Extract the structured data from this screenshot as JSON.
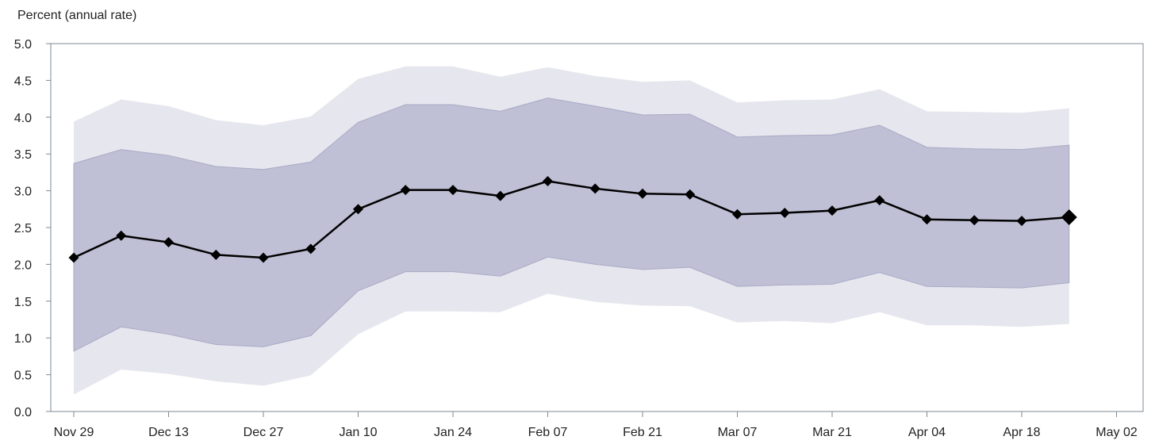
{
  "chart_data": {
    "type": "area",
    "ylabel": "Percent (annual rate)",
    "xlabel": "",
    "ylim": [
      0,
      5
    ],
    "yticks": [
      "0.0",
      "0.5",
      "1.0",
      "1.5",
      "2.0",
      "2.5",
      "3.0",
      "3.5",
      "4.0",
      "4.5",
      "5.0"
    ],
    "xticks": [
      "Nov 29",
      "Dec 13",
      "Dec 27",
      "Jan 10",
      "Jan 24",
      "Feb 07",
      "Feb 21",
      "Mar 07",
      "Mar 21",
      "Apr 04",
      "Apr 18",
      "May 02"
    ],
    "x": [
      "Nov 29",
      "Dec 06",
      "Dec 13",
      "Dec 20",
      "Dec 27",
      "Jan 03",
      "Jan 10",
      "Jan 17",
      "Jan 24",
      "Jan 31",
      "Feb 07",
      "Feb 14",
      "Feb 21",
      "Feb 28",
      "Mar 07",
      "Mar 14",
      "Mar 21",
      "Mar 28",
      "Apr 04",
      "Apr 11",
      "Apr 18",
      "Apr 25"
    ],
    "series": [
      {
        "values": [
          2.09,
          2.39,
          2.3,
          2.13,
          2.09,
          2.21,
          2.75,
          3.01,
          3.01,
          2.93,
          3.13,
          3.03,
          2.96,
          2.95,
          2.68,
          2.7,
          2.73,
          2.87,
          2.61,
          2.6,
          2.59,
          2.64
        ]
      }
    ],
    "bands": [
      {
        "lower": [
          0.23,
          0.57,
          0.51,
          0.41,
          0.35,
          0.49,
          1.05,
          1.36,
          1.36,
          1.35,
          1.6,
          1.49,
          1.44,
          1.43,
          1.21,
          1.23,
          1.2,
          1.35,
          1.17,
          1.17,
          1.15,
          1.19
        ],
        "upper": [
          3.94,
          4.24,
          4.15,
          3.96,
          3.89,
          4.01,
          4.52,
          4.69,
          4.69,
          4.55,
          4.68,
          4.56,
          4.48,
          4.5,
          4.2,
          4.23,
          4.24,
          4.38,
          4.08,
          4.07,
          4.06,
          4.12
        ]
      },
      {
        "lower": [
          0.82,
          1.15,
          1.05,
          0.91,
          0.88,
          1.03,
          1.64,
          1.9,
          1.9,
          1.84,
          2.1,
          2.0,
          1.93,
          1.96,
          1.7,
          1.72,
          1.73,
          1.89,
          1.7,
          1.69,
          1.68,
          1.75
        ],
        "upper": [
          3.37,
          3.56,
          3.48,
          3.33,
          3.29,
          3.39,
          3.93,
          4.17,
          4.17,
          4.08,
          4.26,
          4.15,
          4.03,
          4.04,
          3.73,
          3.75,
          3.76,
          3.89,
          3.59,
          3.57,
          3.56,
          3.62
        ]
      }
    ],
    "colors": {
      "outer_band": "#e6e6ee",
      "inner_band": "#bfc0d5",
      "inner_band_edge": "#a9aac6",
      "line": "#000000",
      "marker": "#000000",
      "axis": "#7f8a96"
    },
    "grid": false,
    "legend": "none"
  }
}
